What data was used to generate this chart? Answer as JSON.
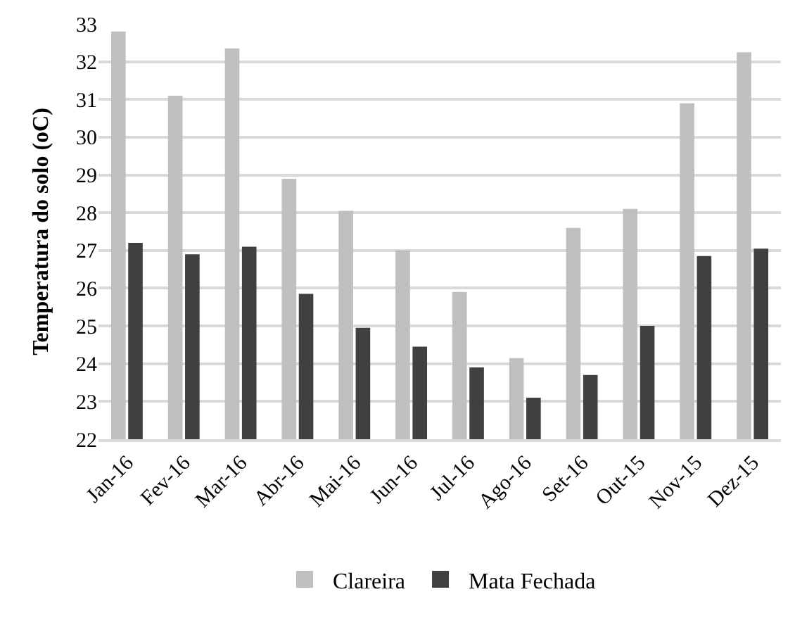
{
  "chart_data": {
    "type": "bar",
    "ylabel": "Temperatura do solo (oC)",
    "categories": [
      "Jan-16",
      "Fev-16",
      "Mar-16",
      "Abr-16",
      "Mai-16",
      "Jun-16",
      "Jul-16",
      "Ago-16",
      "Set-16",
      "Out-15",
      "Nov-15",
      "Dez-15"
    ],
    "series": [
      {
        "name": "Clareira",
        "color": "#bfbfbf",
        "values": [
          32.8,
          31.1,
          32.35,
          28.9,
          28.05,
          27.0,
          25.9,
          24.15,
          27.6,
          28.1,
          30.9,
          32.25
        ]
      },
      {
        "name": "Mata Fechada",
        "color": "#404040",
        "values": [
          27.2,
          26.9,
          27.1,
          25.85,
          24.95,
          24.45,
          23.9,
          23.1,
          23.7,
          25.0,
          26.85,
          27.05
        ]
      }
    ],
    "ylim": [
      22,
      33
    ],
    "yticks": [
      22,
      23,
      24,
      25,
      26,
      27,
      28,
      29,
      30,
      31,
      32,
      33
    ],
    "grid": "y",
    "legend": "bottom"
  }
}
